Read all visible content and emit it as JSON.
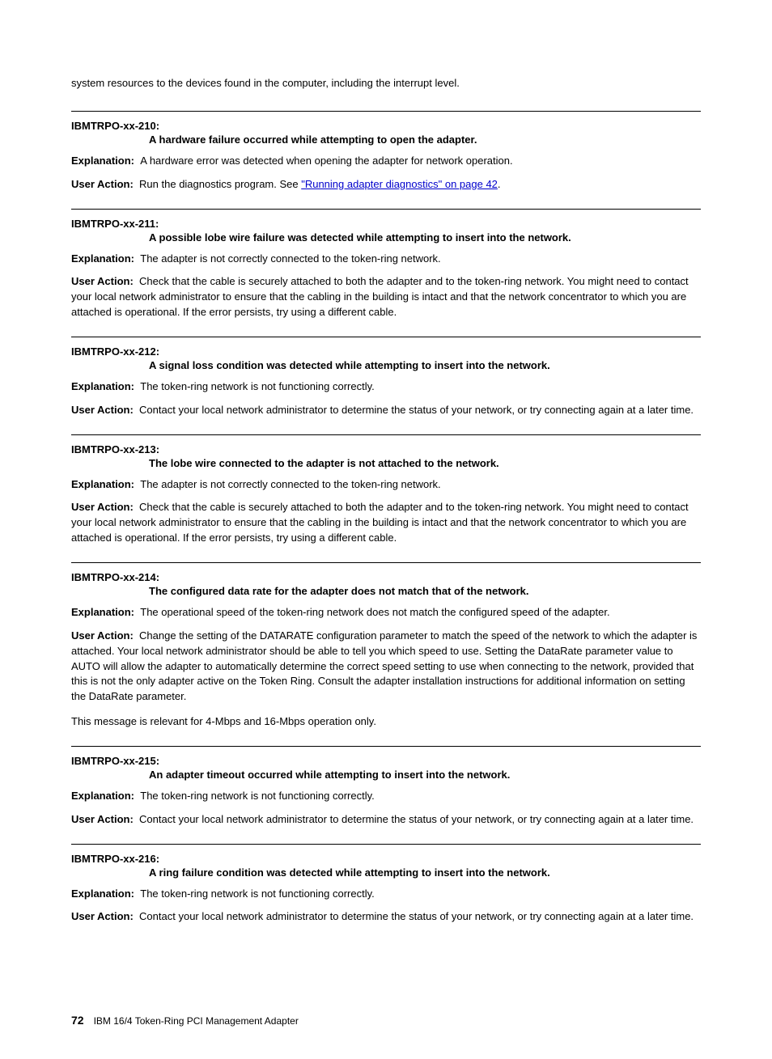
{
  "intro": "system resources to the devices found in the computer, including the interrupt level.",
  "labels": {
    "explanation": "Explanation:",
    "user_action": "User Action:"
  },
  "entries": [
    {
      "code": "IBMTRPO-xx-210:",
      "title": "A hardware failure occurred while attempting to open the adapter.",
      "explanation": "A hardware error was detected when opening the adapter for network operation.",
      "user_action_pre": "Run the diagnostics program. See ",
      "user_action_link": "\"Running adapter diagnostics\" on page 42",
      "user_action_post": ".",
      "has_link": true
    },
    {
      "code": "IBMTRPO-xx-211:",
      "title": "A possible lobe wire failure was detected while attempting to insert into the network.",
      "explanation": "The adapter is not correctly connected to the token-ring network.",
      "user_action": "Check that the cable is securely attached to both the adapter and to the token-ring network. You might need to contact your local network administrator to ensure that the cabling in the building is intact and that the network concentrator to which you are attached is operational. If the error persists, try using a different cable."
    },
    {
      "code": "IBMTRPO-xx-212:",
      "title": "A signal loss condition was detected while attempting to insert into the network.",
      "explanation": "The token-ring network is not functioning correctly.",
      "user_action": "Contact your local network administrator to determine the status of your network, or try connecting again at a later time."
    },
    {
      "code": "IBMTRPO-xx-213:",
      "title": "The lobe wire connected to the adapter is not attached to the network.",
      "explanation": "The adapter is not correctly connected to the token-ring network.",
      "user_action": "Check that the cable is securely attached to both the adapter and to the token-ring network. You might need to contact your local network administrator to ensure that the cabling in the building is intact and that the network concentrator to which you are attached is operational. If the error persists, try using a different cable."
    },
    {
      "code": "IBMTRPO-xx-214:",
      "title": "The configured data rate for the adapter does not match that of the network.",
      "explanation": "The operational speed of the token-ring network does not match the configured speed of the adapter.",
      "user_action": "Change the setting of the DATARATE configuration parameter to match the speed of the network to which the adapter is attached. Your local network administrator should be able to tell you which speed to use. Setting the DataRate parameter value to AUTO will allow the adapter to automatically determine the correct speed setting to use when connecting to the network, provided that this is not the only adapter active on the Token Ring. Consult the adapter installation instructions for additional information on setting the DataRate parameter.",
      "note": "This message is relevant for 4-Mbps and 16-Mbps operation only."
    },
    {
      "code": "IBMTRPO-xx-215:",
      "title": "An adapter timeout occurred while attempting to insert into the network.",
      "explanation": "The token-ring network is not functioning correctly.",
      "user_action": "Contact your local network administrator to determine the status of your network, or try connecting again at a later time."
    },
    {
      "code": "IBMTRPO-xx-216:",
      "title": "A ring failure condition was detected while attempting to insert into the network.",
      "explanation": "The token-ring network is not functioning correctly.",
      "user_action": "Contact your local network administrator to determine the status of your network, or try connecting again at a later time."
    }
  ],
  "footer": {
    "page_num": "72",
    "doc_title": "IBM 16/4 Token-Ring PCI Management Adapter"
  }
}
